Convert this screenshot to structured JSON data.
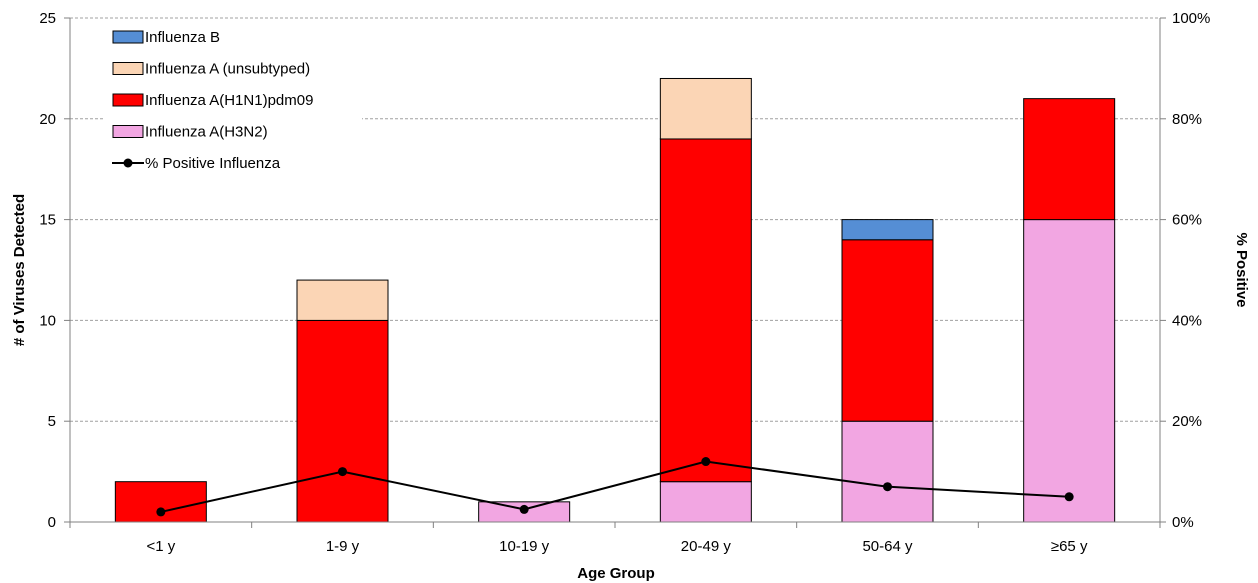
{
  "chart_data": {
    "type": "bar",
    "stacked": true,
    "categories": [
      "<1 y",
      "1-9 y",
      "10-19 y",
      "20-49 y",
      "50-64 y",
      "≥65 y"
    ],
    "series": [
      {
        "name": "Influenza A(H3N2)",
        "color": "#f2a6e2",
        "values": [
          0,
          0,
          1,
          2,
          5,
          15
        ]
      },
      {
        "name": "Influenza A(H1N1)pdm09",
        "color": "#ff0000",
        "values": [
          2,
          10,
          0,
          17,
          9,
          6
        ]
      },
      {
        "name": "Influenza A (unsubtyped)",
        "color": "#fbd5b5",
        "values": [
          0,
          2,
          0,
          3,
          0,
          0
        ]
      },
      {
        "name": "Influenza B",
        "color": "#558ed5",
        "values": [
          0,
          0,
          0,
          0,
          1,
          0
        ]
      }
    ],
    "line_series": {
      "name": "% Positive Influenza",
      "color": "#000000",
      "values": [
        2,
        10,
        2.5,
        12,
        7,
        5
      ]
    },
    "xlabel": "Age Group",
    "ylabel": "# of Viruses Detected",
    "y2label": "% Positive",
    "ylim": [
      0,
      25
    ],
    "yticks": [
      0,
      5,
      10,
      15,
      20,
      25
    ],
    "y2lim": [
      0,
      100
    ],
    "y2ticks": [
      "0%",
      "20%",
      "40%",
      "60%",
      "80%",
      "100%"
    ],
    "legend_order": [
      "Influenza B",
      "Influenza A (unsubtyped)",
      "Influenza A(H1N1)pdm09",
      "Influenza A(H3N2)",
      "% Positive Influenza"
    ],
    "grid": "horizontal-dashed",
    "legend_position": "top-left"
  }
}
